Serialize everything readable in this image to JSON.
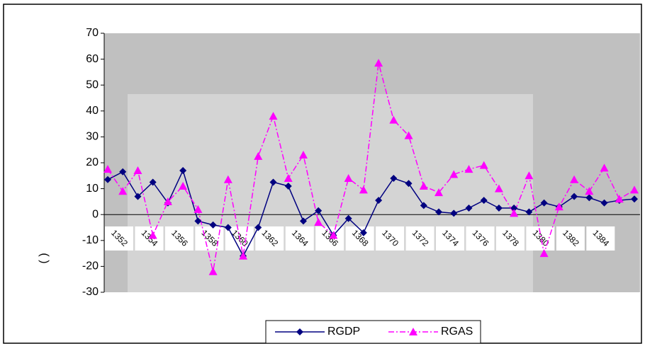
{
  "chart_data": {
    "type": "line",
    "y_label": "( )",
    "categories": [
      "1352",
      null,
      "1354",
      null,
      "1356",
      null,
      "1358",
      null,
      "1360",
      null,
      "1362",
      null,
      "1364",
      null,
      "1366",
      null,
      "1368",
      null,
      "1370",
      null,
      "1372",
      null,
      "1374",
      null,
      "1376",
      null,
      "1378",
      null,
      "1380",
      null,
      "1382",
      null,
      "1384",
      null,
      null,
      null
    ],
    "series": [
      {
        "name": "RGDP",
        "color": "#000080",
        "marker": "diamond",
        "dash": false,
        "values": [
          13.5,
          16.5,
          7,
          12.5,
          4.5,
          17,
          -2.5,
          -4,
          -5,
          -16,
          -5,
          12.5,
          11,
          -2.5,
          1.5,
          -8,
          -1.5,
          -7,
          5.5,
          14,
          12,
          3.5,
          1,
          0.5,
          2.5,
          5.5,
          2.5,
          2.5,
          1,
          4.5,
          3,
          7,
          6.5,
          4.5,
          5.5,
          6
        ]
      },
      {
        "name": "RGAS",
        "color": "#ff00ff",
        "marker": "triangle",
        "dash": true,
        "values": [
          17.5,
          9,
          17,
          -8,
          5,
          11,
          2,
          -22,
          13.5,
          -16,
          22.5,
          38,
          14,
          23,
          -3,
          -8,
          14,
          9.5,
          58.5,
          36.5,
          30.5,
          11,
          8.5,
          15.5,
          17.5,
          19,
          10,
          0.5,
          15,
          -15,
          3,
          13.5,
          9,
          18,
          6,
          9.5
        ]
      }
    ],
    "ylim": [
      -30,
      70
    ],
    "yticks": [
      -30,
      -20,
      -10,
      0,
      10,
      20,
      30,
      40,
      50,
      60,
      70
    ],
    "grid": false,
    "legend": "bottom"
  }
}
